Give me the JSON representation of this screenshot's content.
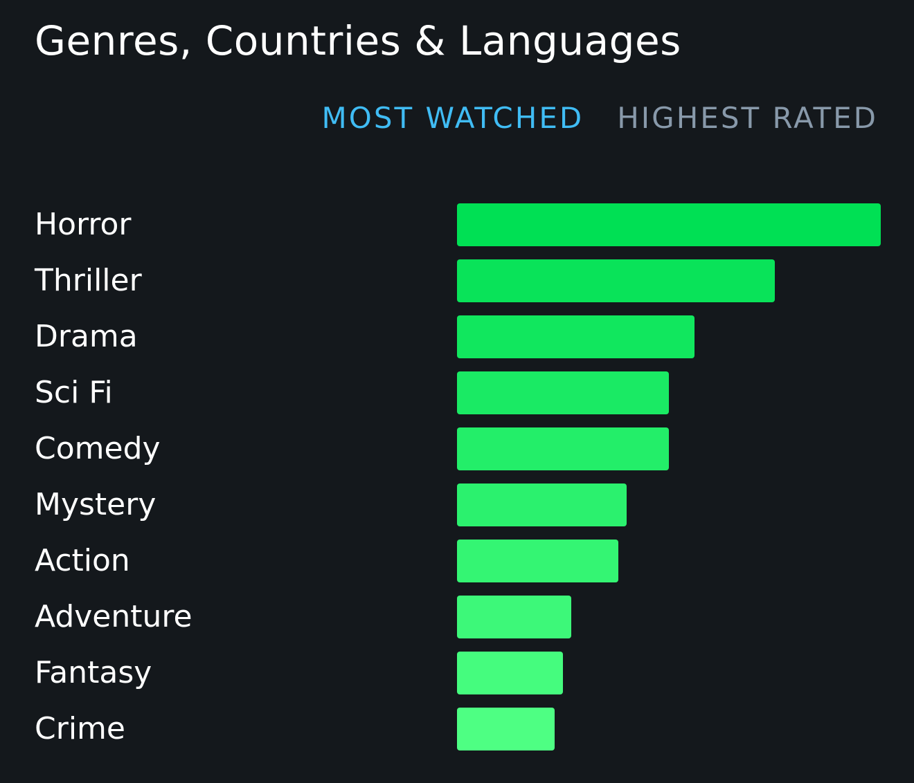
{
  "header": {
    "title": "Genres, Countries & Languages"
  },
  "tabs": [
    {
      "label": "MOST WATCHED",
      "active": true
    },
    {
      "label": "HIGHEST RATED",
      "active": false
    }
  ],
  "colors": {
    "background": "#14181c",
    "active_tab": "#40bcf4",
    "inactive_tab": "#8899aa",
    "bar_start": "#00e054",
    "bar_end": "#4eff83"
  },
  "chart_data": {
    "type": "bar",
    "orientation": "horizontal",
    "categories": [
      "Horror",
      "Thriller",
      "Drama",
      "Sci Fi",
      "Comedy",
      "Mystery",
      "Action",
      "Adventure",
      "Fantasy",
      "Crime"
    ],
    "values": [
      100,
      75,
      56,
      50,
      50,
      40,
      38,
      27,
      25,
      23
    ],
    "xlim": [
      0,
      100
    ],
    "grid": false
  }
}
